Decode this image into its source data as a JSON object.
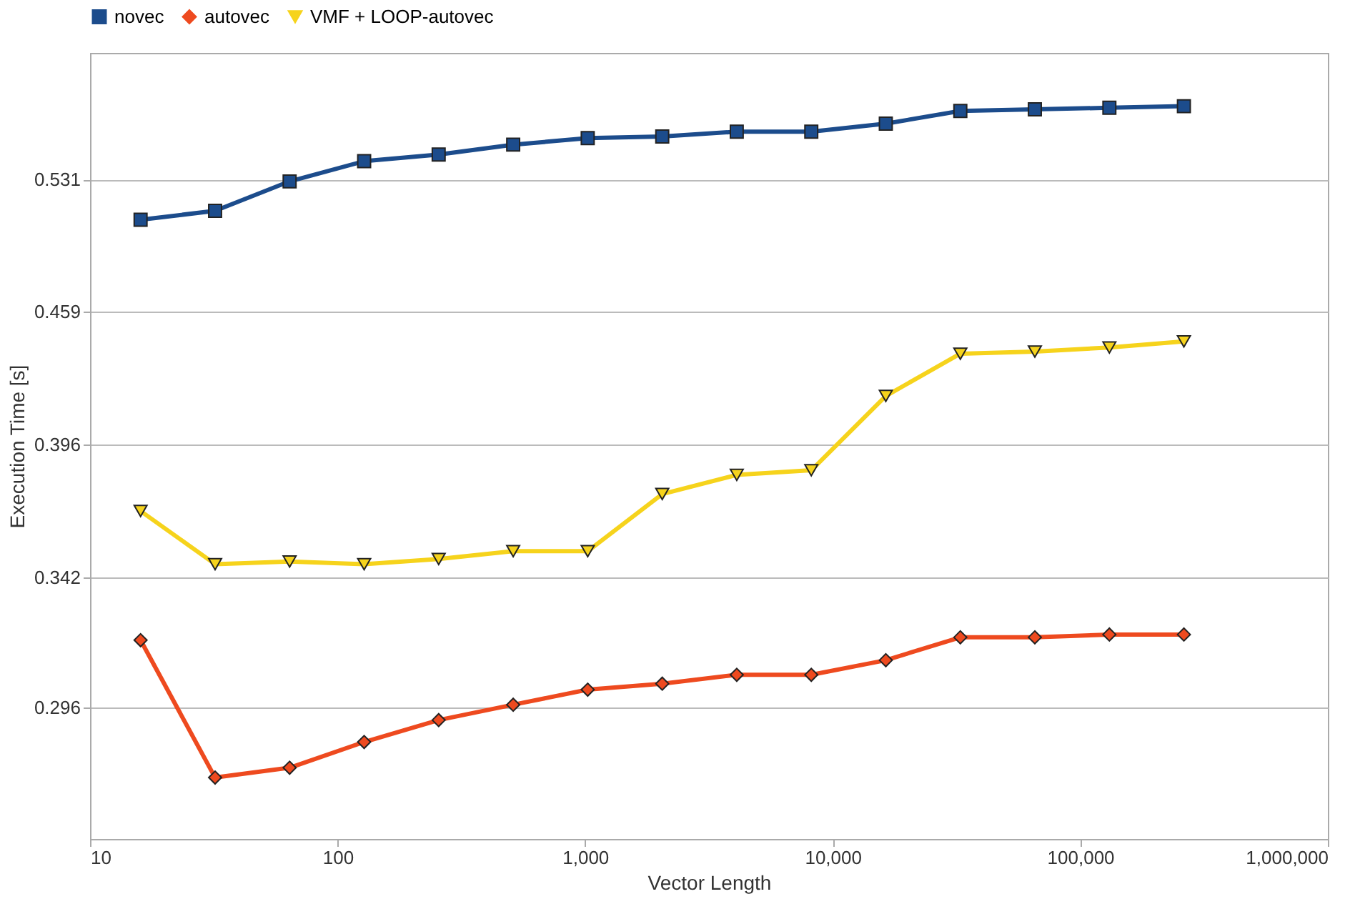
{
  "chart_data": {
    "type": "line",
    "xlabel": "Vector Length",
    "ylabel": "Execution Time [s]",
    "x": [
      16,
      32,
      64,
      128,
      256,
      512,
      1024,
      2048,
      4096,
      8192,
      16384,
      32768,
      65536,
      131072,
      262144
    ],
    "series": [
      {
        "name": "novec",
        "color": "#1c4c8c",
        "marker": "square",
        "values": [
          0.508,
          0.513,
          0.53,
          0.542,
          0.546,
          0.552,
          0.556,
          0.557,
          0.56,
          0.56,
          0.565,
          0.573,
          0.574,
          0.575,
          0.576
        ]
      },
      {
        "name": "autovec",
        "color": "#ee4a1f",
        "marker": "diamond",
        "values": [
          0.319,
          0.274,
          0.277,
          0.285,
          0.292,
          0.297,
          0.302,
          0.304,
          0.307,
          0.307,
          0.312,
          0.32,
          0.32,
          0.321,
          0.321
        ]
      },
      {
        "name": "VMF + LOOP-autovec",
        "color": "#f6d31c",
        "marker": "triangle",
        "values": [
          0.368,
          0.347,
          0.348,
          0.347,
          0.349,
          0.352,
          0.352,
          0.375,
          0.383,
          0.385,
          0.418,
          0.438,
          0.439,
          0.441,
          0.444
        ]
      }
    ],
    "log": "xy",
    "xlim": [
      10,
      1000000
    ],
    "xticks": [
      10,
      100,
      {
        "value": 1000,
        "label": "1,000"
      },
      {
        "value": 10000,
        "label": "10,000"
      },
      {
        "value": 100000,
        "label": "100,000"
      },
      {
        "value": 1000000,
        "label": "1,000,000"
      }
    ],
    "ylim": [
      0.256,
      0.611
    ],
    "yticks": [
      0.296,
      0.342,
      0.396,
      0.459,
      0.531
    ],
    "grid": "y",
    "legend": "top",
    "line_style": "solid"
  }
}
